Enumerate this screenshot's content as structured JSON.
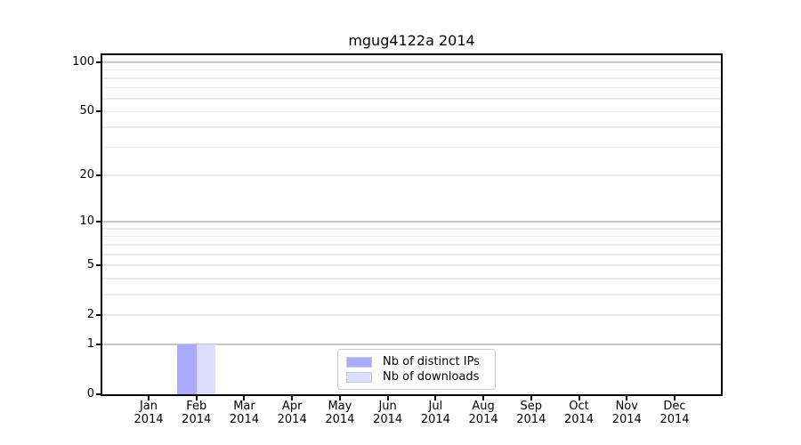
{
  "title": "mgug4122a 2014",
  "chart_data": {
    "type": "bar",
    "title": "mgug4122a 2014",
    "categories": [
      "Jan 2014",
      "Feb 2014",
      "Mar 2014",
      "Apr 2014",
      "May 2014",
      "Jun 2014",
      "Jul 2014",
      "Aug 2014",
      "Sep 2014",
      "Oct 2014",
      "Nov 2014",
      "Dec 2014"
    ],
    "series": [
      {
        "name": "Nb of distinct IPs",
        "color": "#aaaaff",
        "values": [
          0,
          1,
          0,
          0,
          0,
          0,
          0,
          0,
          0,
          0,
          0,
          0
        ]
      },
      {
        "name": "Nb of downloads",
        "color": "#ddddff",
        "values": [
          0,
          1,
          0,
          0,
          0,
          0,
          0,
          0,
          0,
          0,
          0,
          0
        ]
      }
    ],
    "yscale": "log1p",
    "ylim": [
      0,
      110.7
    ],
    "y_ticks": [
      0,
      1,
      2,
      5,
      10,
      20,
      50,
      100
    ],
    "y_major_gridlines": [
      1,
      10,
      100
    ],
    "y_minor_gridlines": [
      2,
      3,
      4,
      5,
      6,
      7,
      8,
      9,
      20,
      30,
      40,
      50,
      60,
      70,
      80,
      90
    ],
    "xlabel": "",
    "ylabel": "",
    "grid": true,
    "legend_position": "lower center inside"
  },
  "legend": {
    "items": [
      {
        "label": "Nb of distinct IPs",
        "color": "#aaaaff"
      },
      {
        "label": "Nb of downloads",
        "color": "#ddddff"
      }
    ]
  },
  "colors": {
    "background": "#ffffff",
    "spine": "#000000",
    "major_grid": "#c8c8c8",
    "minor_grid": "#ebebeb",
    "text": "#000000",
    "legend_border": "#cccccc"
  }
}
